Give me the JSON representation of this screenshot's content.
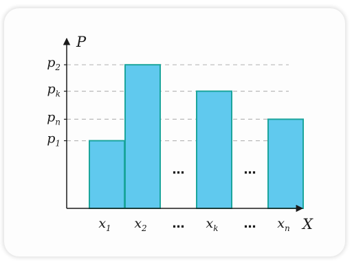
{
  "chart_data": {
    "type": "bar",
    "title": "",
    "xlabel": "X",
    "ylabel": "P",
    "categories": [
      {
        "base": "x",
        "sub": "1"
      },
      {
        "base": "x",
        "sub": "2"
      },
      {
        "gap": true,
        "text": "…"
      },
      {
        "base": "x",
        "sub": "k"
      },
      {
        "gap": true,
        "text": "…"
      },
      {
        "base": "x",
        "sub": "n"
      }
    ],
    "bars": [
      {
        "category": 0,
        "value": 0.41
      },
      {
        "category": 1,
        "value": 0.87
      },
      {
        "category": 3,
        "value": 0.71
      },
      {
        "category": 5,
        "value": 0.54
      }
    ],
    "gap_markers": [
      {
        "category": 2,
        "text": "…",
        "value": 0.21
      },
      {
        "category": 4,
        "text": "…",
        "value": 0.21
      }
    ],
    "y_ticks": [
      {
        "base": "p",
        "sub": "2",
        "value": 0.87
      },
      {
        "base": "p",
        "sub": "k",
        "value": 0.71
      },
      {
        "base": "p",
        "sub": "n",
        "value": 0.54
      },
      {
        "base": "p",
        "sub": "1",
        "value": 0.41
      }
    ],
    "ylim": [
      0,
      1
    ],
    "grid": false,
    "guide_lines": true,
    "colors": {
      "bar_fill": "#60c9ee",
      "bar_stroke": "#1aa59c",
      "guide": "#b8b8b8",
      "axis": "#1a1a1a"
    }
  }
}
